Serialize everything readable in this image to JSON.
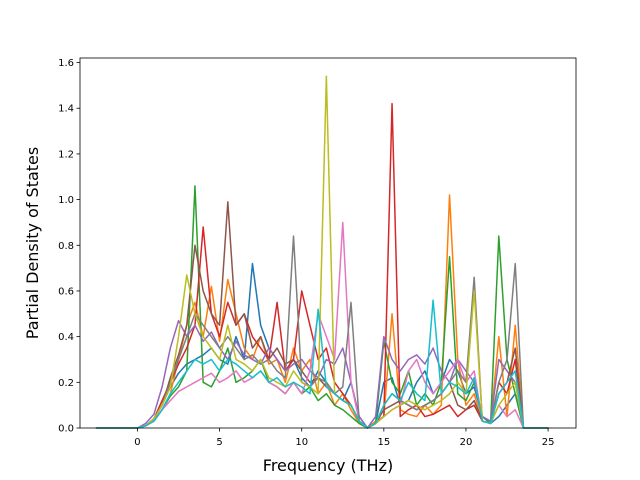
{
  "chart_data": {
    "type": "line",
    "title": "",
    "xlabel": "Frequency (THz)",
    "ylabel": "Partial Density of States",
    "xlim": [
      -3.5,
      26.7
    ],
    "ylim": [
      0.0,
      1.62
    ],
    "xticks": [
      0,
      5,
      10,
      15,
      20,
      25
    ],
    "xtick_labels": [
      "0",
      "5",
      "10",
      "15",
      "20",
      "25"
    ],
    "yticks": [
      0.0,
      0.2,
      0.4,
      0.6,
      0.8,
      1.0,
      1.2,
      1.4,
      1.6
    ],
    "ytick_labels": [
      "0.0",
      "0.2",
      "0.4",
      "0.6",
      "0.8",
      "1.0",
      "1.2",
      "1.4",
      "1.6"
    ],
    "grid": false,
    "legend": "none",
    "x": [
      -2.5,
      -1.5,
      -0.5,
      0.0,
      0.5,
      1.0,
      1.5,
      2.0,
      2.5,
      3.0,
      3.5,
      4.0,
      4.5,
      5.0,
      5.5,
      6.0,
      6.5,
      7.0,
      7.5,
      8.0,
      8.5,
      9.0,
      9.5,
      10.0,
      10.5,
      11.0,
      11.5,
      12.0,
      12.5,
      13.0,
      13.5,
      14.0,
      14.5,
      15.0,
      15.5,
      16.0,
      16.5,
      17.0,
      17.5,
      18.0,
      18.5,
      19.0,
      19.5,
      20.0,
      20.5,
      21.0,
      21.5,
      22.0,
      22.5,
      23.0,
      23.5,
      24.0,
      24.5,
      25.0
    ],
    "series": [
      {
        "color": "#1f77b4",
        "values": [
          0,
          0,
          0,
          0,
          0.01,
          0.04,
          0.1,
          0.18,
          0.24,
          0.28,
          0.3,
          0.32,
          0.35,
          0.3,
          0.28,
          0.4,
          0.3,
          0.72,
          0.45,
          0.35,
          0.3,
          0.25,
          0.3,
          0.22,
          0.18,
          0.25,
          0.2,
          0.15,
          0.12,
          0.2,
          0.05,
          0,
          0.02,
          0.2,
          0.22,
          0.1,
          0.12,
          0.2,
          0.25,
          0.15,
          0.2,
          0.3,
          0.25,
          0.15,
          0.18,
          0.05,
          0.02,
          0.05,
          0.1,
          0.15,
          0,
          0,
          0,
          0
        ]
      },
      {
        "color": "#ff7f0e",
        "values": [
          0,
          0,
          0,
          0,
          0.01,
          0.03,
          0.08,
          0.15,
          0.3,
          0.45,
          0.55,
          0.4,
          0.62,
          0.38,
          0.65,
          0.5,
          0.35,
          0.3,
          0.4,
          0.28,
          0.3,
          0.2,
          0.35,
          0.25,
          0.3,
          0.15,
          0.2,
          0.1,
          0.15,
          0.08,
          0.02,
          0,
          0.03,
          0.05,
          0.5,
          0.08,
          0.06,
          0.05,
          0.1,
          0.06,
          0.1,
          1.02,
          0.3,
          0.1,
          0.15,
          0.03,
          0.02,
          0.4,
          0.05,
          0.45,
          0,
          0,
          0,
          0
        ]
      },
      {
        "color": "#2ca02c",
        "values": [
          0,
          0,
          0,
          0,
          0.01,
          0.03,
          0.08,
          0.14,
          0.18,
          0.25,
          1.06,
          0.2,
          0.18,
          0.25,
          0.35,
          0.2,
          0.22,
          0.25,
          0.3,
          0.2,
          0.18,
          0.15,
          0.2,
          0.15,
          0.18,
          0.12,
          0.15,
          0.1,
          0.08,
          0.05,
          0.02,
          0,
          0.02,
          0.38,
          0.2,
          0.15,
          0.25,
          0.1,
          0.15,
          0.1,
          0.2,
          0.75,
          0.15,
          0.12,
          0.2,
          0.05,
          0.02,
          0.84,
          0.3,
          0.15,
          0,
          0,
          0,
          0
        ]
      },
      {
        "color": "#d62728",
        "values": [
          0,
          0,
          0,
          0,
          0.01,
          0.04,
          0.12,
          0.2,
          0.28,
          0.35,
          0.45,
          0.88,
          0.5,
          0.4,
          0.55,
          0.45,
          0.5,
          0.4,
          0.35,
          0.3,
          0.55,
          0.25,
          0.3,
          0.6,
          0.45,
          0.3,
          0.35,
          0.2,
          0.15,
          0.1,
          0.03,
          0,
          0.02,
          0.05,
          1.42,
          0.05,
          0.08,
          0.1,
          0.05,
          0.06,
          0.08,
          0.1,
          0.05,
          0.08,
          0.1,
          0.03,
          0.02,
          0.2,
          0.15,
          0.3,
          0,
          0,
          0,
          0
        ]
      },
      {
        "color": "#9467bd",
        "values": [
          0,
          0,
          0,
          0,
          0.02,
          0.06,
          0.18,
          0.35,
          0.47,
          0.4,
          0.45,
          0.38,
          0.42,
          0.35,
          0.3,
          0.38,
          0.32,
          0.3,
          0.28,
          0.35,
          0.3,
          0.25,
          0.28,
          0.3,
          0.25,
          0.22,
          0.3,
          0.28,
          0.35,
          0.2,
          0.05,
          0,
          0.05,
          0.4,
          0.3,
          0.25,
          0.3,
          0.32,
          0.28,
          0.35,
          0.25,
          0.2,
          0.3,
          0.25,
          0.2,
          0.05,
          0.03,
          0.3,
          0.25,
          0.2,
          0,
          0,
          0,
          0
        ]
      },
      {
        "color": "#8c564b",
        "values": [
          0,
          0,
          0,
          0,
          0.01,
          0.04,
          0.1,
          0.22,
          0.32,
          0.45,
          0.8,
          0.6,
          0.5,
          0.45,
          0.99,
          0.45,
          0.5,
          0.35,
          0.4,
          0.3,
          0.35,
          0.28,
          0.3,
          0.25,
          0.2,
          0.22,
          0.18,
          0.15,
          0.12,
          0.1,
          0.03,
          0,
          0.02,
          0.08,
          0.1,
          0.12,
          0.1,
          0.08,
          0.1,
          0.12,
          0.15,
          0.2,
          0.1,
          0.08,
          0.12,
          0.03,
          0.02,
          0.15,
          0.2,
          0.35,
          0,
          0,
          0,
          0
        ]
      },
      {
        "color": "#e377c2",
        "values": [
          0,
          0,
          0,
          0,
          0.01,
          0.03,
          0.08,
          0.12,
          0.16,
          0.18,
          0.2,
          0.22,
          0.24,
          0.2,
          0.22,
          0.25,
          0.2,
          0.22,
          0.25,
          0.2,
          0.18,
          0.15,
          0.2,
          0.15,
          0.25,
          0.5,
          0.4,
          0.3,
          0.9,
          0.2,
          0.03,
          0,
          0.02,
          0.05,
          0.08,
          0.1,
          0.25,
          0.3,
          0.2,
          0.15,
          0.2,
          0.25,
          0.3,
          0.2,
          0.25,
          0.03,
          0.02,
          0.1,
          0.05,
          0.08,
          0,
          0,
          0,
          0
        ]
      },
      {
        "color": "#7f7f7f",
        "values": [
          0,
          0,
          0,
          0,
          0.01,
          0.04,
          0.1,
          0.2,
          0.3,
          0.4,
          0.5,
          0.45,
          0.4,
          0.35,
          0.4,
          0.35,
          0.3,
          0.32,
          0.28,
          0.3,
          0.25,
          0.22,
          0.84,
          0.2,
          0.18,
          0.22,
          0.2,
          0.15,
          0.18,
          0.55,
          0.03,
          0,
          0.02,
          0.1,
          0.15,
          0.12,
          0.1,
          0.08,
          0.1,
          0.12,
          0.15,
          0.2,
          0.25,
          0.2,
          0.66,
          0.03,
          0.02,
          0.2,
          0.3,
          0.72,
          0,
          0,
          0,
          0
        ]
      },
      {
        "color": "#bcbd22",
        "values": [
          0,
          0,
          0,
          0,
          0.01,
          0.04,
          0.1,
          0.18,
          0.4,
          0.67,
          0.5,
          0.4,
          0.35,
          0.3,
          0.45,
          0.3,
          0.28,
          0.25,
          0.3,
          0.22,
          0.2,
          0.18,
          0.25,
          0.2,
          0.18,
          0.15,
          1.54,
          0.15,
          0.12,
          0.1,
          0.03,
          0,
          0.02,
          0.05,
          0.08,
          0.1,
          0.12,
          0.1,
          0.08,
          0.1,
          0.12,
          0.15,
          0.2,
          0.15,
          0.6,
          0.03,
          0.02,
          0.1,
          0.15,
          0.2,
          0,
          0,
          0,
          0
        ]
      },
      {
        "color": "#17becf",
        "values": [
          0,
          0,
          0,
          0,
          0.01,
          0.03,
          0.08,
          0.15,
          0.2,
          0.25,
          0.3,
          0.28,
          0.3,
          0.25,
          0.3,
          0.28,
          0.25,
          0.22,
          0.25,
          0.2,
          0.22,
          0.18,
          0.2,
          0.18,
          0.15,
          0.52,
          0.18,
          0.15,
          0.12,
          0.1,
          0.03,
          0,
          0.02,
          0.1,
          0.15,
          0.12,
          0.2,
          0.15,
          0.12,
          0.56,
          0.15,
          0.2,
          0.18,
          0.15,
          0.22,
          0.03,
          0.02,
          0.15,
          0.2,
          0.25,
          0,
          0,
          0,
          0
        ]
      }
    ]
  }
}
